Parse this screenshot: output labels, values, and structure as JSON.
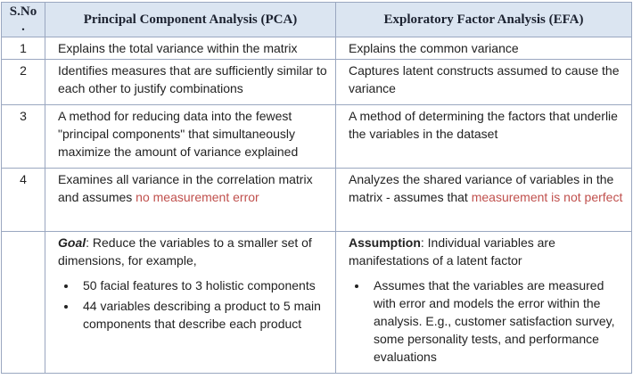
{
  "headers": {
    "sno_line1": "S.No",
    "sno_line2": ".",
    "pca": "Principal Component Analysis (PCA)",
    "efa": "Exploratory Factor Analysis (EFA)"
  },
  "rows": [
    {
      "sno": "1",
      "pca": "Explains the total variance within the matrix",
      "efa": "Explains the common variance"
    },
    {
      "sno": "2",
      "pca": "Identifies measures that are sufficiently similar to each other to justify combinations",
      "efa": "Captures latent constructs assumed to cause the variance"
    },
    {
      "sno": "3",
      "pca": "A method for reducing data into the fewest \"principal components\" that simultaneously maximize the amount of variance explained",
      "efa": "A method of determining the factors that underlie the variables in the dataset"
    },
    {
      "sno": "4",
      "pca_text": "Examines all variance in the correlation matrix and assumes ",
      "pca_red": "no measurement error",
      "efa_text": "Analyzes the shared variance of variables in the matrix - assumes that ",
      "efa_red": "measurement is not perfect"
    }
  ],
  "last_row": {
    "pca_label": "Goal",
    "pca_text": ": Reduce the variables to a smaller set of dimensions, for example,",
    "pca_bullets": [
      "50 facial features to 3 holistic components",
      "44 variables describing a product to 5 main components that describe each product"
    ],
    "efa_label": "Assumption",
    "efa_text": ": Individual variables are manifestations of a latent factor",
    "efa_bullets": [
      "Assumes that the variables are measured with error and models the error within the analysis. E.g., customer satisfaction survey, some personality tests, and performance evaluations"
    ]
  },
  "colors": {
    "header_bg": "#dbe5f1",
    "border": "#9aa7c0",
    "emphasis_red": "#c0504d"
  }
}
